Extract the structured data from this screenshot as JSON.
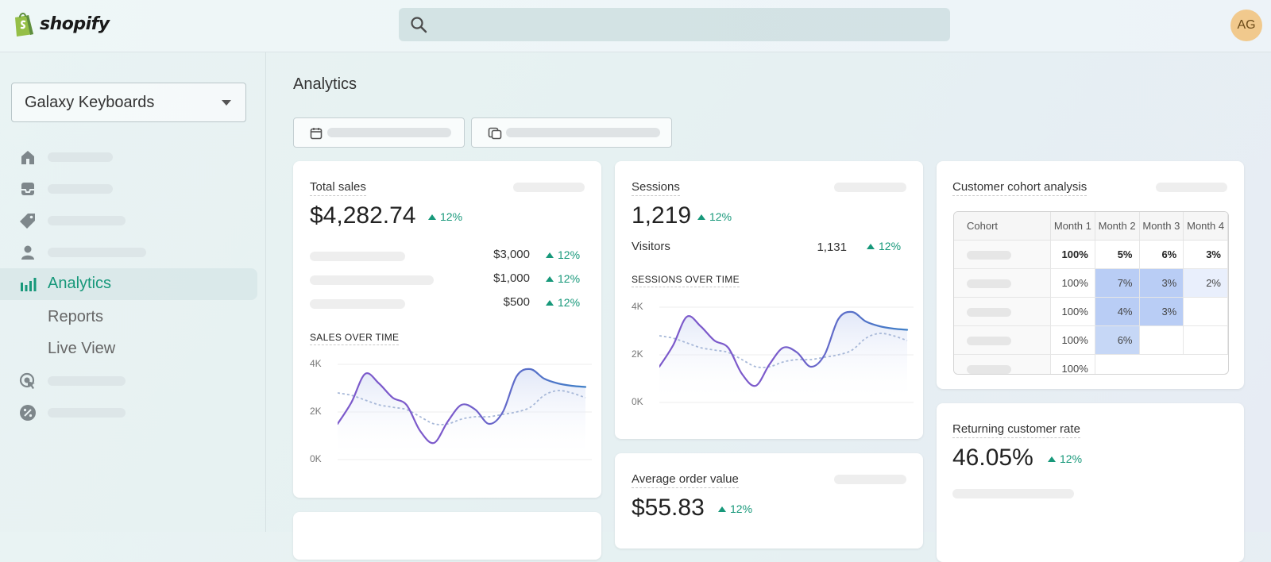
{
  "app": {
    "brand": "shopify",
    "avatar_initials": "AG",
    "brand_color": "#95BF47"
  },
  "search": {
    "placeholder": ""
  },
  "sidebar": {
    "store_name": "Galaxy Keyboards",
    "items": [
      {
        "icon": "home-icon"
      },
      {
        "icon": "orders-inbox-icon"
      },
      {
        "icon": "products-tag-icon"
      },
      {
        "icon": "customers-person-icon"
      },
      {
        "icon": "analytics-bars-icon",
        "label": "Analytics",
        "active": true
      },
      {
        "icon": "marketing-target-icon"
      },
      {
        "icon": "discounts-badge-icon"
      }
    ],
    "sub_items": [
      {
        "label": "Reports"
      },
      {
        "label": "Live View"
      }
    ]
  },
  "page": {
    "title": "Analytics"
  },
  "filters": [
    {
      "icon": "calendar-icon"
    },
    {
      "icon": "compare-calendar-icon"
    }
  ],
  "cards": {
    "total_sales": {
      "title": "Total sales",
      "value": "$4,282.74",
      "delta": "12%",
      "rows": [
        {
          "value": "$3,000",
          "delta": "12%"
        },
        {
          "value": "$1,000",
          "delta": "12%"
        },
        {
          "value": "$500",
          "delta": "12%"
        }
      ],
      "chart_label": "SALES OVER TIME"
    },
    "sessions": {
      "title": "Sessions",
      "value": "1,219",
      "delta": "12%",
      "visitors_label": "Visitors",
      "visitors_value": "1,131",
      "visitors_delta": "12%",
      "chart_label": "SESSIONS OVER TIME"
    },
    "average_order_value": {
      "title": "Average order value",
      "value": "$55.83",
      "delta": "12%"
    },
    "cohort": {
      "title": "Customer cohort analysis",
      "headers": [
        "Cohort",
        "Month 1",
        "Month 2",
        "Month 3",
        "Month 4"
      ],
      "rows": [
        [
          "100%",
          "5%",
          "6%",
          "3%"
        ],
        [
          "100%",
          "7%",
          "3%",
          "2%"
        ],
        [
          "100%",
          "4%",
          "3%",
          ""
        ],
        [
          "100%",
          "6%",
          "",
          ""
        ],
        [
          "100%",
          "",
          "",
          ""
        ]
      ]
    },
    "returning_customer_rate": {
      "title": "Returning customer rate",
      "value": "46.05%",
      "delta": "12%"
    }
  },
  "colors": {
    "accent_green": "#17987A",
    "line_primary": "#3F7FC7",
    "line_secondary": "#7C5ACB",
    "comparison_line": "#A7B8D8"
  },
  "chart_data": [
    {
      "type": "line",
      "title": "SALES OVER TIME",
      "y_ticks": [
        "4K",
        "2K",
        "0K"
      ],
      "ylim": [
        0,
        4000
      ],
      "x": [
        0,
        1,
        2,
        3,
        4,
        5,
        6,
        7,
        8,
        9,
        10,
        11,
        12,
        13,
        14,
        15,
        16,
        17,
        18
      ],
      "series": [
        {
          "values": [
            1500,
            2400,
            3600,
            3200,
            2600,
            2300,
            1200,
            700,
            1600,
            2300,
            2100,
            1500,
            2000,
            3500,
            3800,
            3400,
            3200,
            3100,
            3050
          ]
        },
        {
          "values": [
            2800,
            2700,
            2500,
            2300,
            2200,
            2100,
            1800,
            1500,
            1500,
            1700,
            1800,
            1800,
            1900,
            2000,
            2200,
            2700,
            2900,
            2800,
            2600
          ]
        }
      ]
    },
    {
      "type": "line",
      "title": "SESSIONS OVER TIME",
      "y_ticks": [
        "4K",
        "2K",
        "0K"
      ],
      "ylim": [
        0,
        4000
      ],
      "x": [
        0,
        1,
        2,
        3,
        4,
        5,
        6,
        7,
        8,
        9,
        10,
        11,
        12,
        13,
        14,
        15,
        16,
        17,
        18
      ],
      "series": [
        {
          "values": [
            1500,
            2400,
            3600,
            3200,
            2600,
            2300,
            1200,
            700,
            1600,
            2300,
            2100,
            1500,
            2000,
            3500,
            3800,
            3400,
            3200,
            3100,
            3050
          ]
        },
        {
          "values": [
            2800,
            2700,
            2500,
            2300,
            2200,
            2100,
            1800,
            1500,
            1500,
            1700,
            1800,
            1800,
            1900,
            2000,
            2200,
            2700,
            2900,
            2800,
            2600
          ]
        }
      ]
    }
  ]
}
